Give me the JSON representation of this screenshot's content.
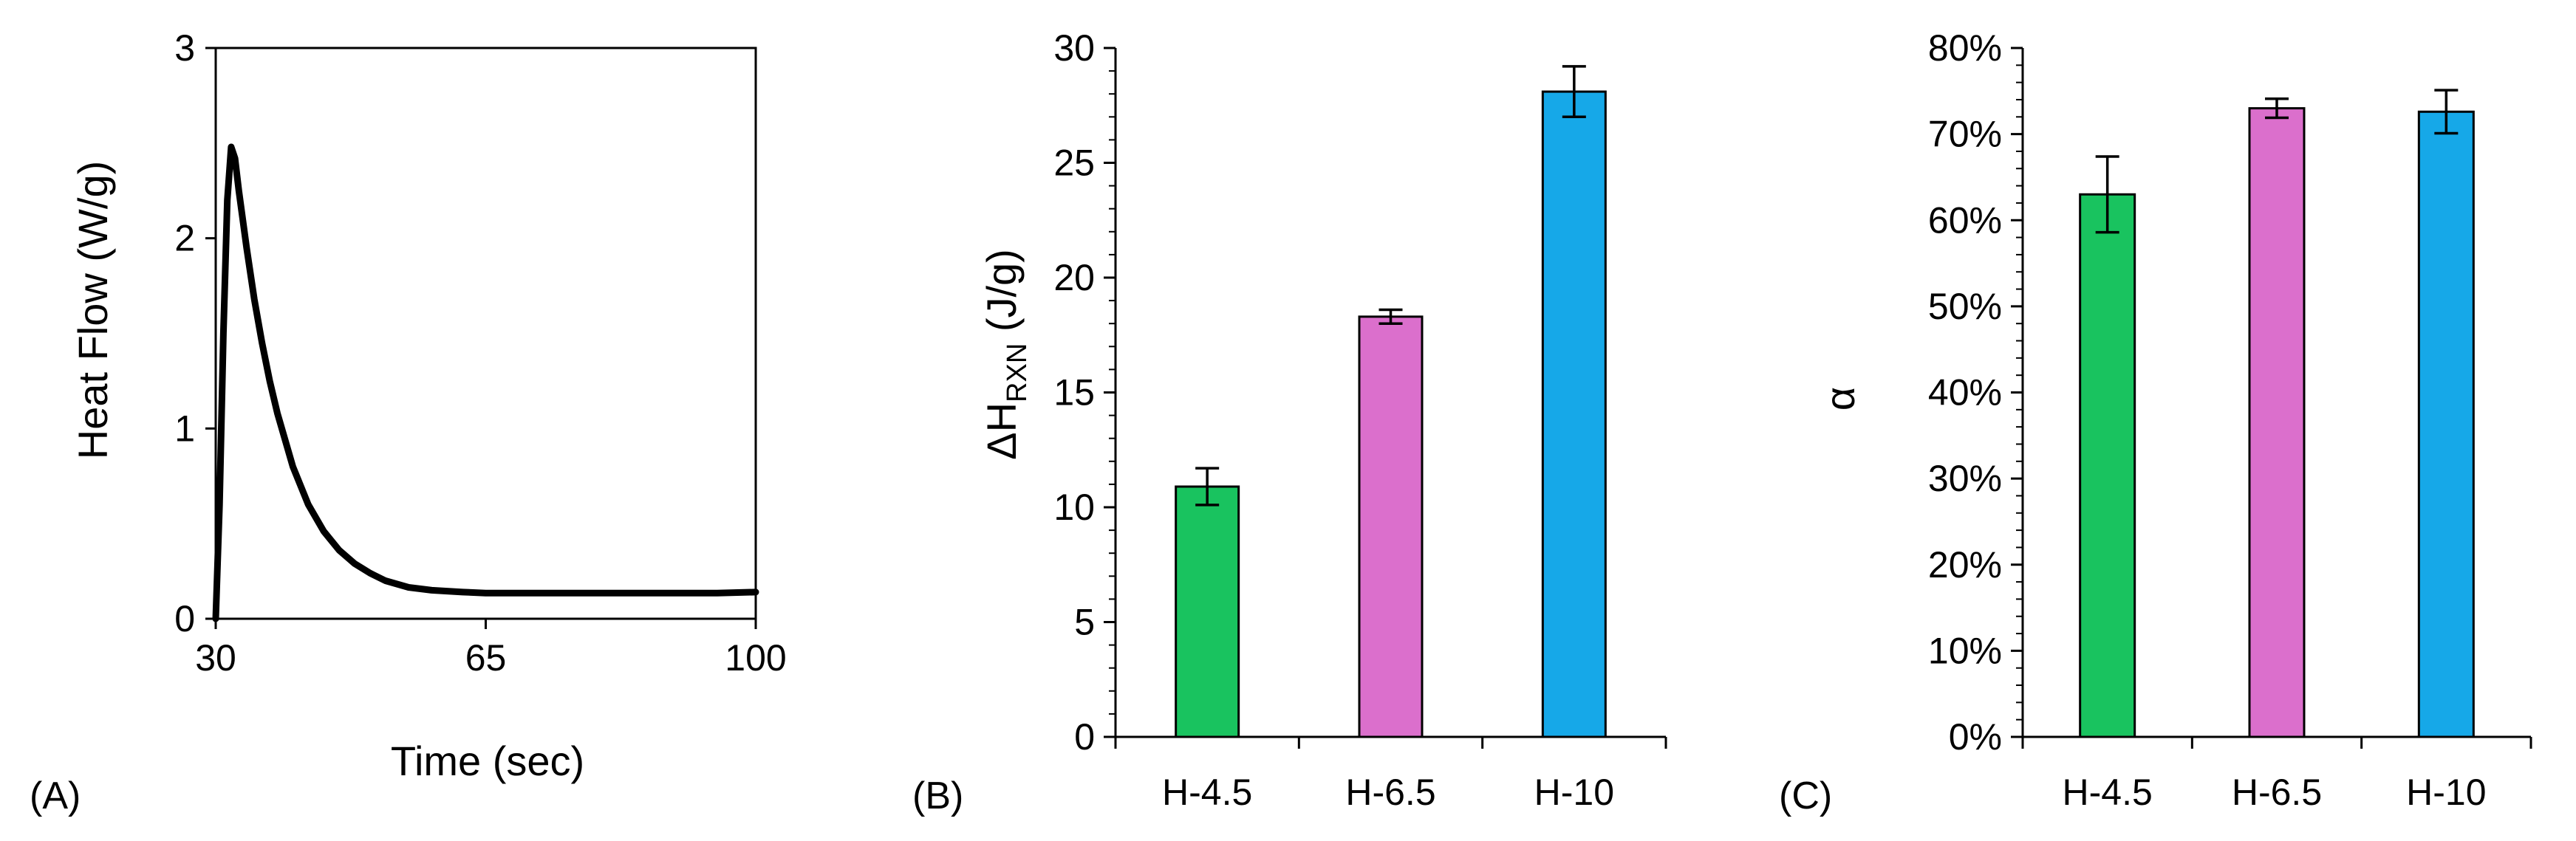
{
  "panels": [
    {
      "label": "(A)"
    },
    {
      "label": "(B)"
    },
    {
      "label": "(C)"
    }
  ],
  "chart_data": [
    {
      "type": "line",
      "xlabel": "Time (sec)",
      "ylabel": "Heat Flow (W/g)",
      "xlim": [
        30,
        100
      ],
      "ylim": [
        0,
        3
      ],
      "xticks": [
        30,
        65,
        100
      ],
      "yticks": [
        0,
        1,
        2,
        3
      ],
      "grid": false,
      "series": [
        {
          "color": "#000000",
          "x": [
            30,
            30.5,
            31,
            31.5,
            32,
            32.5,
            33,
            34,
            35,
            36,
            37,
            38,
            40,
            42,
            44,
            46,
            48,
            50,
            52,
            55,
            58,
            62,
            65,
            70,
            75,
            80,
            85,
            90,
            95,
            100
          ],
          "y": [
            0,
            0.6,
            1.5,
            2.2,
            2.48,
            2.42,
            2.25,
            1.95,
            1.68,
            1.45,
            1.25,
            1.08,
            0.8,
            0.6,
            0.46,
            0.36,
            0.29,
            0.24,
            0.2,
            0.165,
            0.15,
            0.14,
            0.135,
            0.135,
            0.135,
            0.135,
            0.135,
            0.135,
            0.135,
            0.14
          ]
        }
      ]
    },
    {
      "type": "bar",
      "ylabel_main": "ΔH",
      "ylabel_sub": "RXN",
      "ylabel_rest": " (J/g)",
      "ylim": [
        0,
        30
      ],
      "yticks": [
        0,
        5,
        10,
        15,
        20,
        25,
        30
      ],
      "categories": [
        "H-4.5",
        "H-6.5",
        "H-10"
      ],
      "values": [
        10.9,
        18.3,
        28.1
      ],
      "errors": [
        0.8,
        0.3,
        1.1
      ],
      "colors": [
        "#19c35f",
        "#db6fcc",
        "#16a8e8"
      ],
      "grid": false
    },
    {
      "type": "bar",
      "ylabel": "α",
      "ylim": [
        0,
        0.8
      ],
      "yticks": [
        0,
        0.1,
        0.2,
        0.3,
        0.4,
        0.5,
        0.6,
        0.7,
        0.8
      ],
      "ytick_labels": [
        "0%",
        "10%",
        "20%",
        "30%",
        "40%",
        "50%",
        "60%",
        "70%",
        "80%"
      ],
      "categories": [
        "H-4.5",
        "H-6.5",
        "H-10"
      ],
      "values": [
        0.63,
        0.73,
        0.726
      ],
      "errors": [
        0.044,
        0.011,
        0.025
      ],
      "colors": [
        "#19c35f",
        "#db6fcc",
        "#16a8e8"
      ],
      "grid": false
    }
  ]
}
